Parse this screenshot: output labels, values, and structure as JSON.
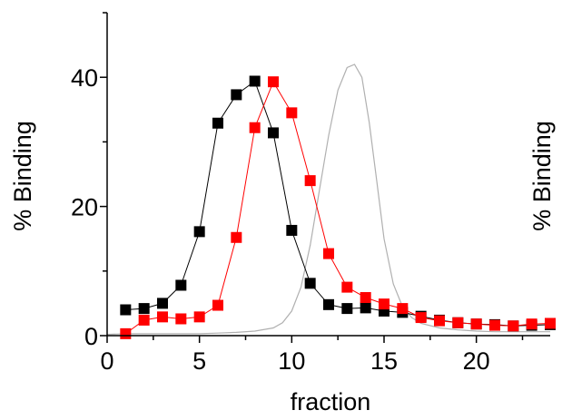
{
  "chart_data": {
    "type": "scatter",
    "xlabel": "fraction",
    "ylabel": "% Binding",
    "ylabel_right": "% Binding",
    "xlim": [
      0,
      24
    ],
    "ylim": [
      0,
      50
    ],
    "xticks": [
      0,
      5,
      10,
      15,
      20
    ],
    "yticks": [
      0,
      20,
      40
    ],
    "grid": false,
    "legend": "none",
    "series": [
      {
        "style": "line-markers",
        "color": "#000000",
        "x": [
          1,
          2,
          3,
          4,
          5,
          6,
          7,
          8,
          9,
          10,
          11,
          12,
          13,
          14,
          15,
          16,
          17,
          18,
          19,
          20,
          21,
          22,
          23,
          24
        ],
        "y": [
          4.0,
          4.2,
          5.0,
          7.8,
          16.1,
          32.9,
          37.3,
          39.4,
          31.4,
          16.3,
          8.1,
          4.8,
          4.2,
          4.3,
          3.8,
          3.6,
          3.0,
          2.4,
          2.0,
          1.8,
          1.7,
          1.5,
          1.6,
          1.7
        ]
      },
      {
        "style": "line-markers",
        "color": "#ff0000",
        "x": [
          1,
          2,
          3,
          4,
          5,
          6,
          7,
          8,
          9,
          10,
          11,
          12,
          13,
          14,
          15,
          16,
          17,
          18,
          19,
          20,
          21,
          22,
          23,
          24
        ],
        "y": [
          0.3,
          2.4,
          2.9,
          2.6,
          2.9,
          4.7,
          15.2,
          32.2,
          39.3,
          34.5,
          24.0,
          12.7,
          7.5,
          5.9,
          4.9,
          4.2,
          2.8,
          2.3,
          2.0,
          1.8,
          1.6,
          1.5,
          1.8,
          1.9
        ]
      },
      {
        "style": "line",
        "color": "#b0b0b0",
        "x": [
          0,
          1,
          2,
          3,
          4,
          5,
          6,
          7,
          8,
          9,
          9.5,
          10,
          10.5,
          11,
          11.5,
          12,
          12.5,
          13,
          13.4,
          13.8,
          14.2,
          14.6,
          15,
          15.5,
          16,
          16.5,
          17,
          18,
          19,
          20,
          21,
          22,
          23,
          24
        ],
        "y": [
          0.2,
          0.3,
          0.3,
          0.3,
          0.3,
          0.3,
          0.4,
          0.5,
          0.7,
          1.2,
          2.0,
          3.8,
          7.5,
          14.0,
          22.5,
          31.0,
          38.0,
          41.5,
          42.0,
          40.0,
          33.0,
          24.0,
          15.0,
          8.0,
          4.5,
          2.8,
          1.9,
          1.2,
          0.9,
          0.7,
          0.6,
          0.6,
          0.6,
          0.6
        ]
      }
    ]
  }
}
